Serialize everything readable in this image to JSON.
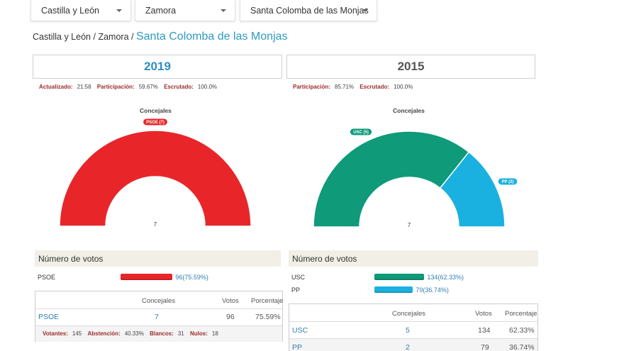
{
  "filters": {
    "region": "Castilla y León",
    "province": "Zamora",
    "municipality": "Santa Colomba de las Monjas"
  },
  "breadcrumb": {
    "region": "Castilla y León",
    "province": "Zamora",
    "municipality": "Santa Colomba de las Monjas",
    "sep": "/"
  },
  "y2019": {
    "year": "2019",
    "stats": {
      "updated_label": "Actualizado:",
      "updated_value": "21:58",
      "participation_label": "Participación:",
      "participation_value": "59.67%",
      "scrutinized_label": "Escrutado:",
      "scrutinized_value": "100.0%"
    },
    "chart_title": "Concejales",
    "total_seats": "7",
    "parties": [
      {
        "label": "PSOE (7)",
        "seats": 7,
        "color": "#e8262a"
      }
    ],
    "votes_header": "Número de votos",
    "votes": [
      {
        "party": "PSOE",
        "text": "96(75.59%)",
        "percent": 75.59,
        "color": "#e8262a"
      }
    ],
    "table": {
      "headers": [
        "Concejales",
        "Votos",
        "Porcentaje"
      ],
      "rows": [
        {
          "party": "PSOE",
          "seats": "7",
          "votes": "96",
          "percent": "75.59%"
        }
      ]
    },
    "footer": {
      "voters_label": "Votantes:",
      "voters_value": "145",
      "abstention_label": "Abstención:",
      "abstention_value": "40.33%",
      "blank_label": "Blancos:",
      "blank_value": "31",
      "null_label": "Nulos:",
      "null_value": "18"
    }
  },
  "y2015": {
    "year": "2015",
    "stats": {
      "participation_label": "Participación:",
      "participation_value": "85.71%",
      "scrutinized_label": "Escrutado:",
      "scrutinized_value": "100.0%"
    },
    "chart_title": "Concejales",
    "total_seats": "7",
    "parties": [
      {
        "label": "USC (5)",
        "seats": 5,
        "color": "#0f9a7a"
      },
      {
        "label": "PP (2)",
        "seats": 2,
        "color": "#1ab1e0"
      }
    ],
    "votes_header": "Número de votos",
    "votes": [
      {
        "party": "USC",
        "text": "134(62.33%)",
        "percent": 62.33,
        "color": "#0f9a7a"
      },
      {
        "party": "PP",
        "text": "79(36.74%)",
        "percent": 36.74,
        "color": "#1ab1e0"
      }
    ],
    "table": {
      "headers": [
        "Concejales",
        "Votos",
        "Porcentaje"
      ],
      "rows": [
        {
          "party": "USC",
          "seats": "5",
          "votes": "134",
          "percent": "62.33%"
        },
        {
          "party": "PP",
          "seats": "2",
          "votes": "79",
          "percent": "36.74%"
        }
      ]
    }
  }
}
